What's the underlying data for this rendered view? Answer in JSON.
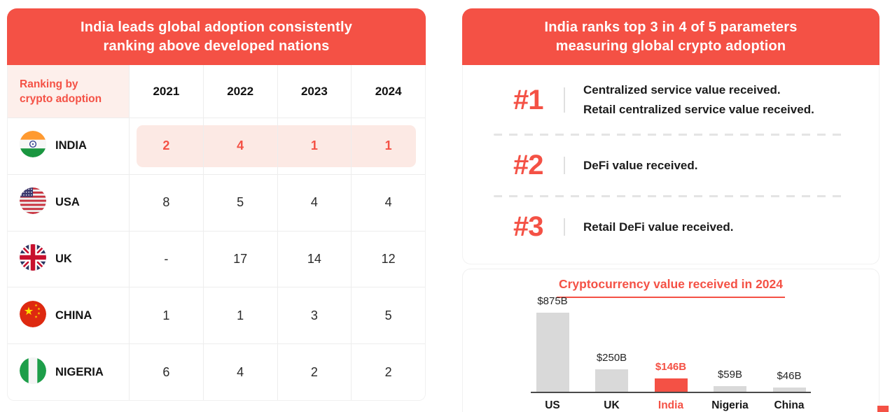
{
  "colors": {
    "accent": "#F45145",
    "accent_soft": "#FCE9E4",
    "corner_cell_bg": "#FDEFEB",
    "bar_gray": "#D9D9D9",
    "axis": "#4A4A4A",
    "text_dark": "#1C1C1C"
  },
  "left_panel": {
    "title_line1": "India leads global adoption consistently",
    "title_line2": "ranking above developed nations",
    "corner_header_line1": "Ranking by",
    "corner_header_line2": "crypto adoption"
  },
  "right_panel": {
    "title_line1": "India ranks top 3 in 4 of 5 parameters",
    "title_line2": "measuring global crypto adoption",
    "rankings": [
      {
        "rank_label": "#1",
        "lines": [
          "Centralized service value received.",
          "Retail centralized service value received."
        ]
      },
      {
        "rank_label": "#2",
        "lines": [
          "DeFi value received."
        ]
      },
      {
        "rank_label": "#3",
        "lines": [
          "Retail DeFi value received."
        ]
      }
    ]
  },
  "chart_data": [
    {
      "type": "table",
      "title": "India leads global adoption consistently ranking above developed nations",
      "corner_header": "Ranking by crypto adoption",
      "columns": [
        "2021",
        "2022",
        "2023",
        "2024"
      ],
      "rows": [
        {
          "country": "INDIA",
          "flag_icon": "india-flag-icon",
          "ranks": [
            "2",
            "4",
            "1",
            "1"
          ],
          "highlighted": true
        },
        {
          "country": "USA",
          "flag_icon": "usa-flag-icon",
          "ranks": [
            "8",
            "5",
            "4",
            "4"
          ],
          "highlighted": false
        },
        {
          "country": "UK",
          "flag_icon": "uk-flag-icon",
          "ranks": [
            "-",
            "17",
            "14",
            "12"
          ],
          "highlighted": false
        },
        {
          "country": "CHINA",
          "flag_icon": "china-flag-icon",
          "ranks": [
            "1",
            "1",
            "3",
            "5"
          ],
          "highlighted": false
        },
        {
          "country": "NIGERIA",
          "flag_icon": "nigeria-flag-icon",
          "ranks": [
            "6",
            "4",
            "2",
            "2"
          ],
          "highlighted": false
        }
      ]
    },
    {
      "type": "bar",
      "title": "Cryptocurrency value received in 2024",
      "categories": [
        "US",
        "UK",
        "India",
        "Nigeria",
        "China"
      ],
      "values": [
        875,
        250,
        146,
        59,
        46
      ],
      "value_labels": [
        "$875B",
        "$250B",
        "$146B",
        "$59B",
        "$46B"
      ],
      "highlight_index": 2,
      "ylim": [
        0,
        875
      ],
      "grid": false,
      "legend": false,
      "bar_color": "#D9D9D9",
      "highlight_color": "#F45145"
    }
  ]
}
